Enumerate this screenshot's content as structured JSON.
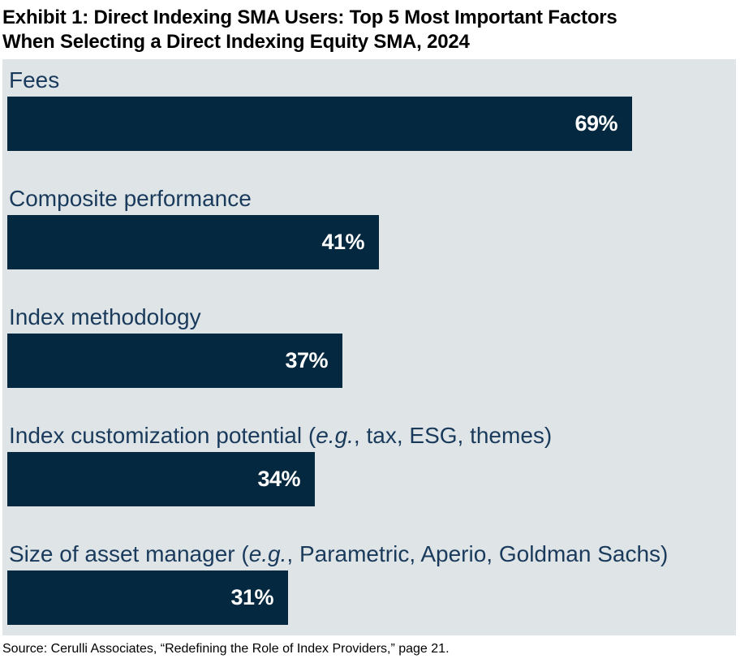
{
  "title": {
    "line1": "Exhibit 1: Direct Indexing SMA Users: Top 5 Most Important Factors",
    "line2": "When Selecting a Direct Indexing Equity SMA, 2024"
  },
  "source": "Source: Cerulli Associates, “Redefining the Role of Index Providers,” page 21.",
  "colors": {
    "bar": "#04283f",
    "category_label": "#1a3a5c",
    "chart_background": "#dfe5e7",
    "value_label": "#ffffff",
    "title_text": "#000000"
  },
  "chart_data": {
    "type": "bar",
    "orientation": "horizontal",
    "title": "Exhibit 1: Direct Indexing SMA Users: Top 5 Most Important Factors When Selecting a Direct Indexing Equity SMA, 2024",
    "categories": [
      "Fees",
      "Composite performance",
      "Index methodology",
      "Index customization potential (e.g., tax, ESG, themes)",
      "Size of asset manager (e.g., Parametric, Aperio, Goldman Sachs)"
    ],
    "values": [
      69,
      41,
      37,
      34,
      31
    ],
    "value_labels": [
      "69%",
      "41%",
      "37%",
      "34%",
      "31%"
    ],
    "xlabel": "",
    "ylabel": "",
    "xlim": [
      0,
      81
    ],
    "grid": false,
    "legend": "none",
    "data_labels_position": "inside-end",
    "rows": [
      {
        "label_pre": "Fees",
        "label_italic": "",
        "label_post": "",
        "value": 69,
        "value_label": "69%"
      },
      {
        "label_pre": "Composite performance",
        "label_italic": "",
        "label_post": "",
        "value": 41,
        "value_label": "41%"
      },
      {
        "label_pre": "Index methodology",
        "label_italic": "",
        "label_post": "",
        "value": 37,
        "value_label": "37%"
      },
      {
        "label_pre": "Index customization potential (",
        "label_italic": "e.g.",
        "label_post": ", tax, ESG, themes)",
        "value": 34,
        "value_label": "34%"
      },
      {
        "label_pre": "Size of asset manager (",
        "label_italic": "e.g.",
        "label_post": ", Parametric, Aperio, Goldman Sachs)",
        "value": 31,
        "value_label": "31%"
      }
    ]
  }
}
